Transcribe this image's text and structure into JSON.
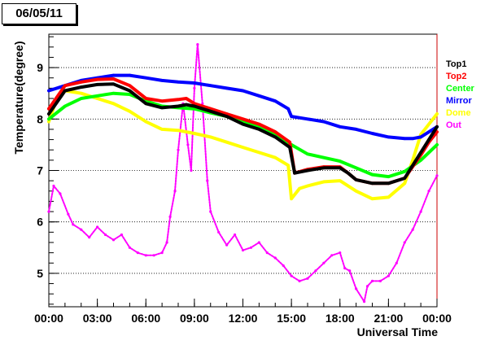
{
  "chart_data": {
    "type": "scatter",
    "title": "06/05/11",
    "xlabel": "Universal Time",
    "ylabel": "Temperature(degree)",
    "xlim": [
      0,
      24
    ],
    "ylim": [
      4.35,
      9.65
    ],
    "x_ticks": [
      "00:00",
      "03:00",
      "06:00",
      "09:00",
      "12:00",
      "15:00",
      "18:00",
      "21:00",
      "00:00"
    ],
    "y_ticks": [
      5,
      6,
      7,
      8,
      9
    ],
    "grid": "horizontal-dotted",
    "legend_position": "right",
    "series": [
      {
        "name": "Top1",
        "color": "#000000",
        "x": [
          0,
          1,
          2,
          3,
          4,
          5,
          6,
          7,
          8,
          8.5,
          9,
          10,
          11,
          12,
          13,
          14,
          14.9,
          15.2,
          16,
          17,
          18,
          18.5,
          19,
          20,
          21,
          22,
          23,
          23.5,
          24
        ],
        "y": [
          8.1,
          8.55,
          8.62,
          8.67,
          8.68,
          8.55,
          8.3,
          8.22,
          8.25,
          8.28,
          8.25,
          8.15,
          8.05,
          7.9,
          7.8,
          7.65,
          7.45,
          6.95,
          7,
          7.05,
          7.05,
          6.95,
          6.82,
          6.75,
          6.75,
          6.85,
          7.35,
          7.6,
          7.85
        ]
      },
      {
        "name": "Top2",
        "color": "#ff0000",
        "x": [
          0,
          1,
          2,
          3,
          4,
          5,
          6,
          7,
          8,
          8.5,
          9,
          10,
          11,
          12,
          13,
          14,
          14.9,
          15.2,
          16,
          17,
          18,
          18.5,
          19,
          20,
          21,
          22,
          23,
          23.5,
          24
        ],
        "y": [
          8.2,
          8.65,
          8.72,
          8.77,
          8.78,
          8.65,
          8.4,
          8.35,
          8.38,
          8.4,
          8.3,
          8.2,
          8.1,
          8.0,
          7.9,
          7.75,
          7.55,
          6.95,
          7.02,
          7.07,
          7.07,
          6.95,
          6.82,
          6.75,
          6.75,
          6.85,
          7.3,
          7.55,
          7.75
        ]
      },
      {
        "name": "Center",
        "color": "#00ff00",
        "x": [
          0,
          1,
          2,
          3,
          4,
          5,
          6,
          7,
          8,
          9,
          10,
          11,
          12,
          13,
          14,
          15,
          16,
          17,
          18,
          19,
          20,
          21,
          22,
          23,
          24
        ],
        "y": [
          8.0,
          8.25,
          8.4,
          8.45,
          8.5,
          8.48,
          8.35,
          8.25,
          8.22,
          8.2,
          8.12,
          8.05,
          7.95,
          7.85,
          7.7,
          7.5,
          7.32,
          7.25,
          7.18,
          7.05,
          6.92,
          6.88,
          6.98,
          7.2,
          7.5
        ]
      },
      {
        "name": "Mirror",
        "color": "#0000ff",
        "x": [
          0,
          1,
          2,
          3,
          4,
          5,
          6,
          7,
          8,
          9,
          10,
          11,
          12,
          13,
          14,
          14.8,
          15,
          16,
          17,
          18,
          19,
          20,
          21,
          22,
          22.5,
          23,
          24
        ],
        "y": [
          8.55,
          8.65,
          8.75,
          8.8,
          8.85,
          8.85,
          8.8,
          8.75,
          8.72,
          8.7,
          8.65,
          8.6,
          8.55,
          8.45,
          8.35,
          8.2,
          8.05,
          8.0,
          7.95,
          7.85,
          7.8,
          7.72,
          7.65,
          7.62,
          7.62,
          7.65,
          7.85
        ]
      },
      {
        "name": "Dome",
        "color": "#ffff00",
        "x": [
          0,
          0.5,
          1,
          2,
          3,
          4,
          5,
          6,
          7,
          8,
          9,
          10,
          11,
          12,
          13,
          14,
          14.8,
          15,
          15.5,
          16,
          17,
          18,
          19,
          20,
          21,
          22,
          22.5,
          23,
          24
        ],
        "y": [
          7.95,
          8.4,
          8.55,
          8.5,
          8.4,
          8.3,
          8.15,
          7.95,
          7.8,
          7.78,
          7.72,
          7.65,
          7.55,
          7.45,
          7.35,
          7.25,
          7.1,
          6.45,
          6.65,
          6.7,
          6.78,
          6.8,
          6.6,
          6.45,
          6.48,
          6.75,
          7.2,
          7.7,
          8.1
        ]
      },
      {
        "name": "Out",
        "color": "#ff00ff",
        "x": [
          0,
          0.3,
          0.7,
          1.2,
          1.5,
          2,
          2.5,
          3,
          3.5,
          4,
          4.5,
          5,
          5.5,
          6,
          6.5,
          7,
          7.3,
          7.5,
          7.8,
          8,
          8.3,
          8.6,
          8.8,
          9,
          9.2,
          9.5,
          9.8,
          10,
          10.5,
          11,
          11.5,
          12,
          12.5,
          13,
          13.5,
          14,
          14.5,
          15,
          15.5,
          16,
          16.5,
          17,
          17.5,
          18,
          18.3,
          18.6,
          19,
          19.5,
          19.7,
          20,
          20.5,
          21,
          21.5,
          22,
          22.5,
          23,
          23.5,
          24
        ],
        "y": [
          6.2,
          6.7,
          6.55,
          6.15,
          5.95,
          5.85,
          5.7,
          5.9,
          5.75,
          5.65,
          5.75,
          5.5,
          5.4,
          5.35,
          5.35,
          5.4,
          5.6,
          6.1,
          6.6,
          7.4,
          8.3,
          7.5,
          7.0,
          8.6,
          9.45,
          8.3,
          6.8,
          6.2,
          5.8,
          5.55,
          5.75,
          5.45,
          5.5,
          5.6,
          5.4,
          5.3,
          5.15,
          4.95,
          4.85,
          4.9,
          5.05,
          5.2,
          5.35,
          5.4,
          5.1,
          5.05,
          4.7,
          4.45,
          4.75,
          4.85,
          4.85,
          4.95,
          5.2,
          5.6,
          5.85,
          6.2,
          6.6,
          6.9
        ]
      }
    ]
  }
}
